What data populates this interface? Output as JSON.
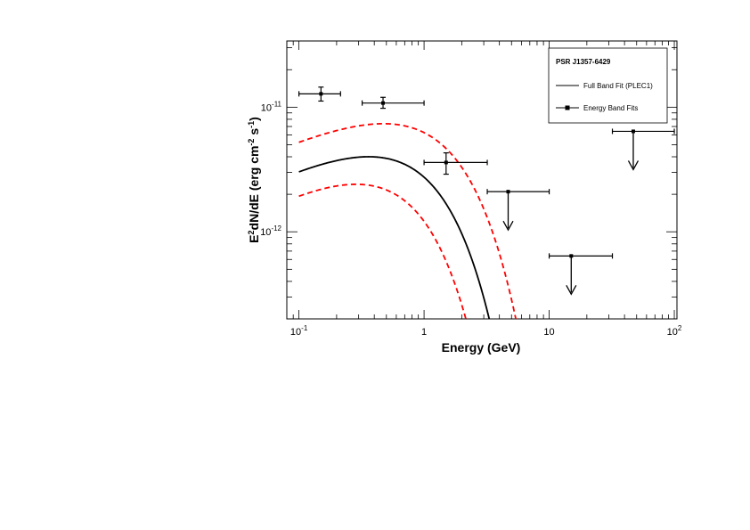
{
  "chart_data": {
    "type": "scatter",
    "title": "",
    "xlabel": "Energy (GeV)",
    "ylabel_parts": {
      "a": "E",
      "a_sup": "2",
      "b": "dN/dE (erg cm",
      "b_sup": "-2",
      "c": " s",
      "c_sup": "-1",
      "d": ")"
    },
    "x_scale": "log",
    "y_scale": "log",
    "xlim": [
      0.08,
      105
    ],
    "ylim": [
      2e-13,
      3.4e-11
    ],
    "x_ticks": [
      {
        "value": 0.1,
        "base": "10",
        "exp": "-1"
      },
      {
        "value": 1,
        "base": "1",
        "exp": ""
      },
      {
        "value": 10,
        "base": "10",
        "exp": ""
      },
      {
        "value": 100,
        "base": "10",
        "exp": "2"
      }
    ],
    "y_ticks": [
      {
        "value": 1e-11,
        "base": "10",
        "exp": "-11"
      },
      {
        "value": 1e-12,
        "base": "10",
        "exp": "-12"
      }
    ],
    "grid": false,
    "legend": {
      "placement": "top-right",
      "title": "PSR J1357-6429",
      "entries": [
        {
          "label": "Full Band Fit (PLEC1)",
          "style": "line"
        },
        {
          "label": "Energy Band Fits",
          "style": "line-marker"
        }
      ]
    },
    "colors": {
      "fit": "#000000",
      "band": "#ff0000",
      "points": "#000000"
    },
    "full_band_fit": {
      "name": "Full Band Fit (PLEC1)",
      "model": "E2dNdE = A * E^(2-G) * exp(-E/Ec)",
      "A": 1.1e-11,
      "G": 1.5,
      "Ec": 0.72
    },
    "error_band": {
      "upper": {
        "A": 1.62e-11,
        "G": 1.55,
        "Ec": 1.05
      },
      "lower": {
        "A": 8.3e-12,
        "G": 1.45,
        "Ec": 0.52
      }
    },
    "points": [
      {
        "x": 0.15,
        "x_lo": 0.1,
        "x_hi": 0.215,
        "y": 1.28e-11,
        "y_lo": 1.12e-11,
        "y_hi": 1.45e-11
      },
      {
        "x": 0.47,
        "x_lo": 0.32,
        "x_hi": 1.0,
        "y": 1.08e-11,
        "y_lo": 9.8e-12,
        "y_hi": 1.2e-11
      },
      {
        "x": 1.5,
        "x_lo": 1.0,
        "x_hi": 3.2,
        "y": 3.6e-12,
        "y_lo": 2.9e-12,
        "y_hi": 4.3e-12
      }
    ],
    "upper_limits": [
      {
        "x": 4.7,
        "x_lo": 3.2,
        "x_hi": 10.0,
        "y": 2.1e-12
      },
      {
        "x": 15.0,
        "x_lo": 10.0,
        "x_hi": 32.0,
        "y": 6.4e-13
      },
      {
        "x": 47.0,
        "x_lo": 32.0,
        "x_hi": 100.0,
        "y": 6.4e-12
      }
    ]
  }
}
